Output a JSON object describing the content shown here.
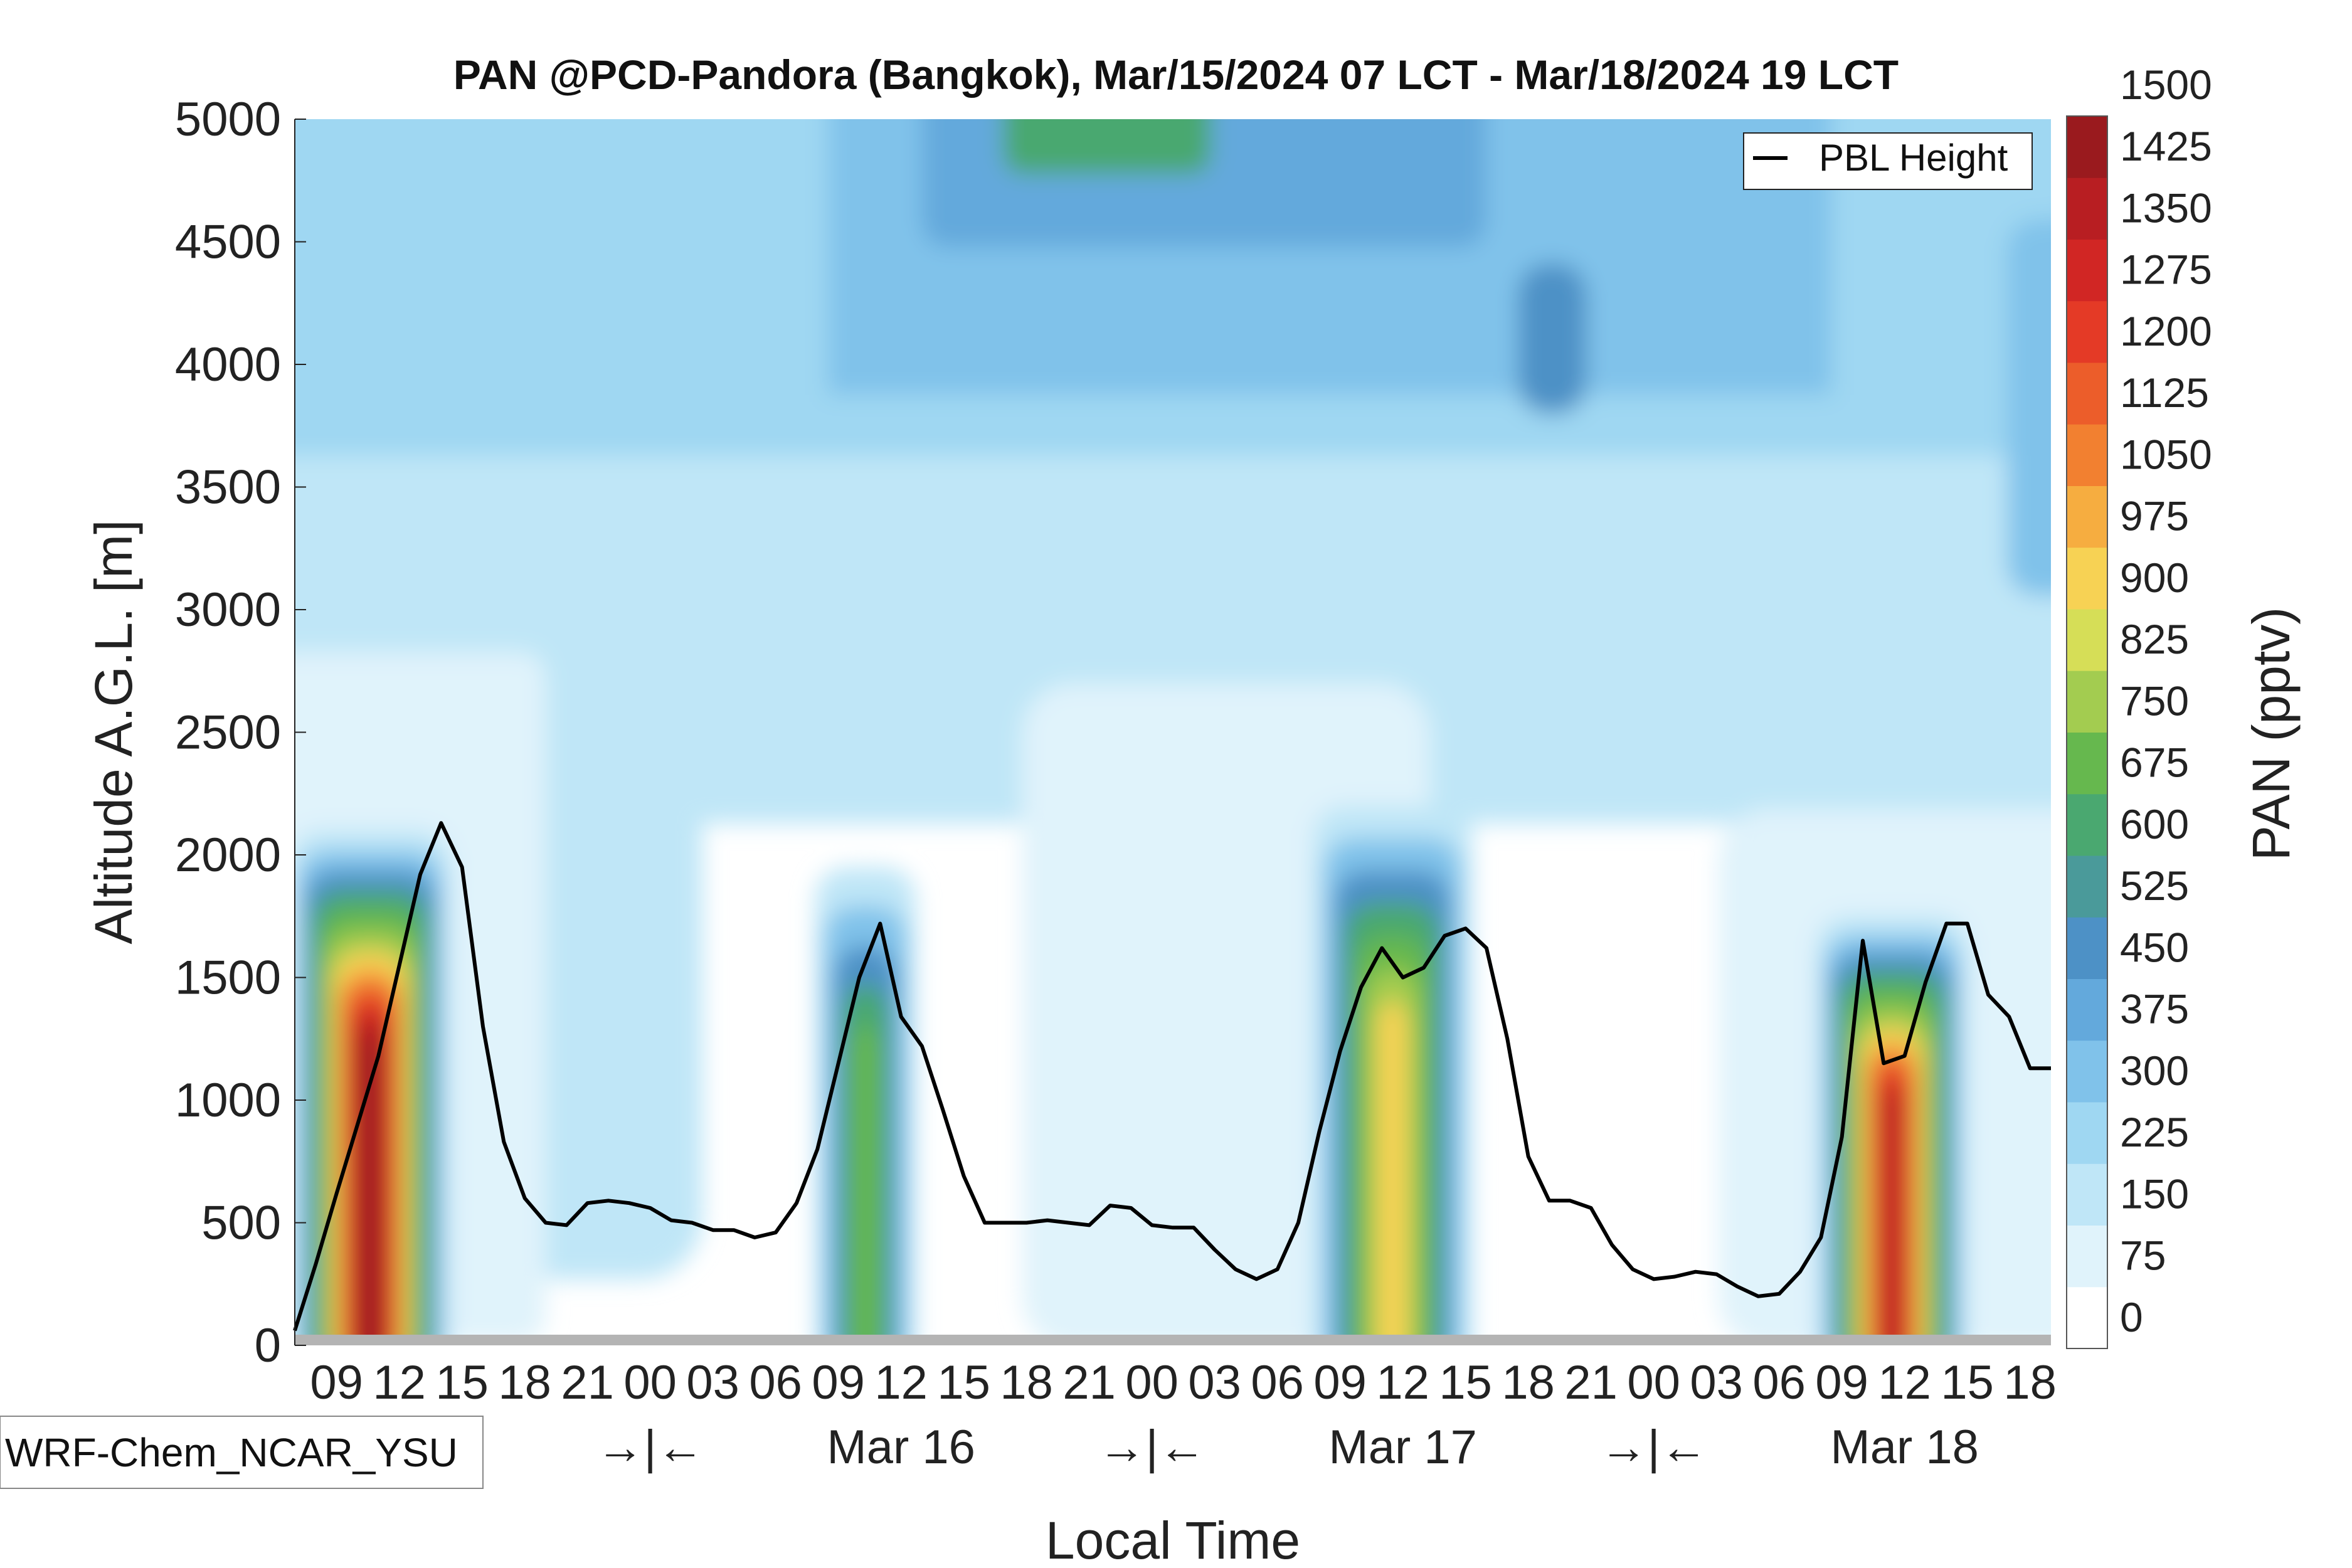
{
  "chart_data": {
    "type": "heatmap",
    "title": "PAN @PCD-Pandora (Bangkok), Mar/15/2024 07 LCT - Mar/18/2024 19 LCT",
    "xlabel": "Local Time",
    "ylabel": "Altitude A.G.L. [m]",
    "ylim": [
      0,
      5000
    ],
    "yticks": [
      0,
      500,
      1000,
      1500,
      2000,
      2500,
      3000,
      3500,
      4000,
      4500,
      5000
    ],
    "x_range_hours": [
      0,
      84
    ],
    "x_hour_ticks": [
      "09",
      "12",
      "15",
      "18",
      "21",
      "00",
      "03",
      "06",
      "09",
      "12",
      "15",
      "18",
      "21",
      "00",
      "03",
      "06",
      "09",
      "12",
      "15",
      "18",
      "21",
      "00",
      "03",
      "06",
      "09",
      "12",
      "15",
      "18"
    ],
    "x_tick_start_hour": 2,
    "x_tick_step_hours": 3,
    "day_labels": [
      {
        "text": "→|←",
        "hour": 17
      },
      {
        "text": "Mar 16",
        "hour": 29
      },
      {
        "text": "→|←",
        "hour": 41
      },
      {
        "text": "Mar 17",
        "hour": 53
      },
      {
        "text": "→|←",
        "hour": 65
      },
      {
        "text": "Mar 18",
        "hour": 77
      }
    ],
    "colorbar": {
      "label": "PAN (pptv)",
      "levels": [
        0,
        75,
        150,
        225,
        300,
        375,
        450,
        525,
        600,
        675,
        750,
        825,
        900,
        975,
        1050,
        1125,
        1200,
        1275,
        1350,
        1425,
        1500
      ],
      "colors": [
        "#ffffff",
        "#e0f3fb",
        "#bfe6f7",
        "#9fd7f2",
        "#80c2ea",
        "#63a9dc",
        "#4d91c6",
        "#4a9a9a",
        "#4aa870",
        "#66b84e",
        "#a3cc50",
        "#d6de57",
        "#f7d254",
        "#f6ad40",
        "#f28030",
        "#ec5d2a",
        "#e43a26",
        "#d12624",
        "#b81e22",
        "#9a1a1e"
      ]
    },
    "pbl_height": {
      "name": "PBL Height",
      "hours": [
        0,
        1,
        2,
        3,
        4,
        5,
        6,
        7,
        8,
        9,
        10,
        11,
        12,
        13,
        14,
        15,
        16,
        17,
        18,
        19,
        20,
        21,
        22,
        23,
        24,
        25,
        26,
        27,
        28,
        29,
        30,
        31,
        32,
        33,
        34,
        35,
        36,
        37,
        38,
        39,
        40,
        41,
        42,
        43,
        44,
        45,
        46,
        47,
        48,
        49,
        50,
        51,
        52,
        53,
        54,
        55,
        56,
        57,
        58,
        59,
        60,
        61,
        62,
        63,
        64,
        65,
        66,
        67,
        68,
        69,
        70,
        71,
        72,
        73,
        74,
        75,
        76,
        77,
        78,
        79,
        80,
        81,
        82,
        83,
        84
      ],
      "values": [
        60,
        330,
        620,
        900,
        1180,
        1550,
        1920,
        2130,
        1950,
        1300,
        830,
        600,
        500,
        490,
        580,
        590,
        580,
        560,
        510,
        500,
        470,
        470,
        440,
        460,
        580,
        800,
        1150,
        1500,
        1720,
        1340,
        1220,
        960,
        690,
        500,
        500,
        500,
        510,
        500,
        490,
        570,
        560,
        490,
        480,
        480,
        390,
        310,
        270,
        310,
        500,
        870,
        1200,
        1460,
        1620,
        1500,
        1540,
        1670,
        1700,
        1620,
        1250,
        770,
        590,
        590,
        560,
        410,
        310,
        270,
        280,
        300,
        290,
        240,
        200,
        210,
        300,
        440,
        850,
        1650,
        1150,
        1180,
        1480,
        1720,
        1720,
        1430,
        1340,
        1130,
        1130
      ]
    },
    "legend": {
      "entries": [
        "PBL Height"
      ],
      "placement": "top-right"
    },
    "model_label": "WRF-Chem_NCAR_YSU"
  }
}
